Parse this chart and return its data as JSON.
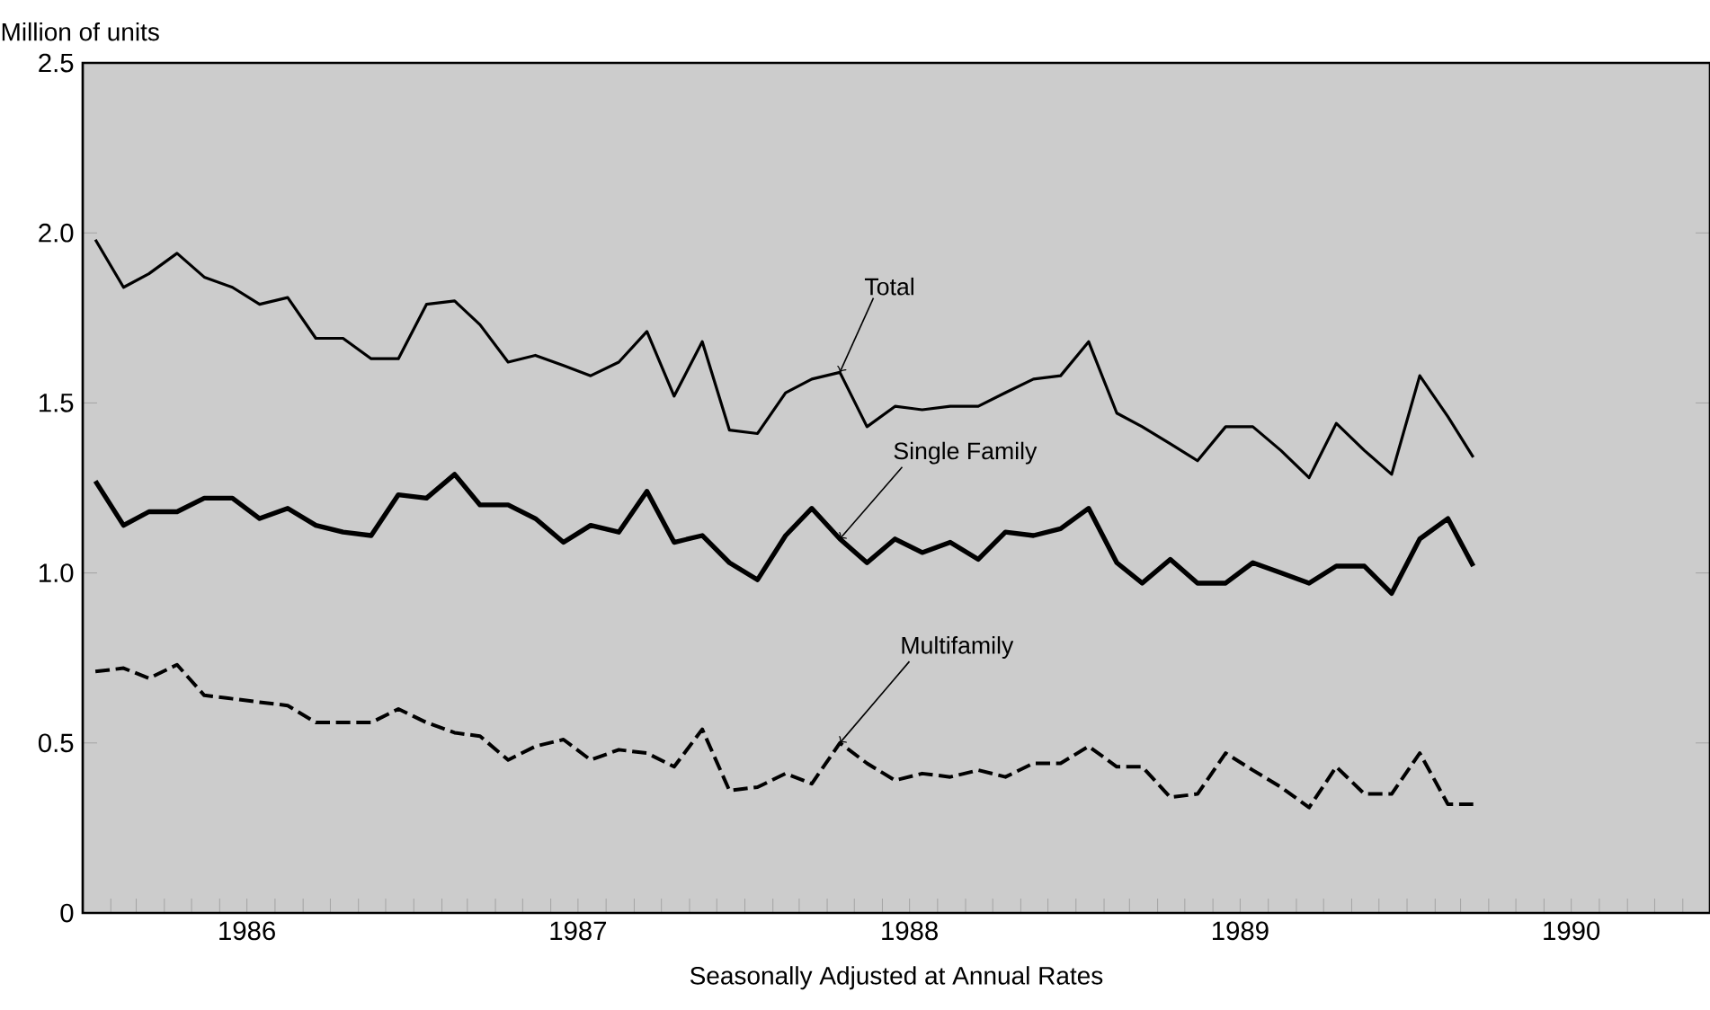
{
  "chart_data": {
    "type": "line",
    "xlabel": "Seasonally Adjusted at Annual Rates",
    "ylabel": "Million of units",
    "x": [
      "1986-01-15",
      "1986-02-15",
      "1986-03-15",
      "1986-04-15",
      "1986-05-15",
      "1986-06-15",
      "1986-07-15",
      "1986-08-15",
      "1986-09-15",
      "1986-10-15",
      "1986-11-15",
      "1986-12-15",
      "1987-01-15",
      "1987-02-15",
      "1987-03-15",
      "1987-04-15",
      "1987-05-15",
      "1987-06-15",
      "1987-07-15",
      "1987-08-15",
      "1987-09-15",
      "1987-10-15",
      "1987-11-15",
      "1987-12-15",
      "1988-01-15",
      "1988-02-15",
      "1988-03-15",
      "1988-04-15",
      "1988-05-15",
      "1988-06-15",
      "1988-07-15",
      "1988-08-15",
      "1988-09-15",
      "1988-10-15",
      "1988-11-15",
      "1988-12-15",
      "1989-01-15",
      "1989-02-15",
      "1989-03-15",
      "1989-04-15",
      "1989-05-15",
      "1989-06-15",
      "1989-07-15",
      "1989-08-15",
      "1989-09-15",
      "1989-10-15",
      "1989-11-15",
      "1989-12-15",
      "1990-01-15",
      "1990-02-15",
      "1990-03-15"
    ],
    "series": [
      {
        "name": "Total",
        "color": "#000000",
        "line_style": "solid",
        "values": [
          1.98,
          1.84,
          1.88,
          1.94,
          1.87,
          1.84,
          1.79,
          1.81,
          1.69,
          1.69,
          1.63,
          1.63,
          1.79,
          1.8,
          1.73,
          1.62,
          1.64,
          1.61,
          1.58,
          1.62,
          1.71,
          1.52,
          1.68,
          1.42,
          1.41,
          1.53,
          1.57,
          1.59,
          1.43,
          1.49,
          1.48,
          1.49,
          1.49,
          1.53,
          1.57,
          1.58,
          1.68,
          1.47,
          1.43,
          1.38,
          1.33,
          1.43,
          1.43,
          1.36,
          1.28,
          1.44,
          1.36,
          1.29,
          1.58,
          1.46,
          1.34
        ]
      },
      {
        "name": "Single Family",
        "color": "#000000",
        "line_style": "solid",
        "values": [
          1.27,
          1.14,
          1.18,
          1.18,
          1.22,
          1.22,
          1.16,
          1.19,
          1.14,
          1.12,
          1.11,
          1.23,
          1.22,
          1.29,
          1.2,
          1.2,
          1.16,
          1.09,
          1.14,
          1.12,
          1.24,
          1.09,
          1.11,
          1.03,
          0.98,
          1.11,
          1.19,
          1.1,
          1.03,
          1.1,
          1.06,
          1.09,
          1.04,
          1.12,
          1.11,
          1.13,
          1.19,
          1.03,
          0.97,
          1.04,
          0.97,
          0.97,
          1.03,
          1.0,
          0.97,
          1.02,
          1.02,
          0.94,
          1.1,
          1.16,
          1.02
        ]
      },
      {
        "name": "Multifamily",
        "color": "#000000",
        "line_style": "dashed",
        "values": [
          0.71,
          0.72,
          0.69,
          0.73,
          0.64,
          0.63,
          0.62,
          0.61,
          0.56,
          0.56,
          0.56,
          0.6,
          0.56,
          0.53,
          0.52,
          0.45,
          0.49,
          0.51,
          0.45,
          0.48,
          0.47,
          0.43,
          0.54,
          0.36,
          0.37,
          0.41,
          0.38,
          0.5,
          0.44,
          0.39,
          0.41,
          0.4,
          0.42,
          0.4,
          0.44,
          0.44,
          0.49,
          0.43,
          0.43,
          0.34,
          0.35,
          0.47,
          0.42,
          0.37,
          0.31,
          0.43,
          0.35,
          0.35,
          0.47,
          0.32,
          0.32
        ]
      }
    ],
    "xlim": [
      "1986-01-01",
      "1990-12-01"
    ],
    "xticks": [
      {
        "value": "1986-01-01",
        "label": null
      },
      {
        "value": "1986-02-01",
        "label": null
      },
      {
        "value": "1986-03-01",
        "label": null
      },
      {
        "value": "1986-04-01",
        "label": null
      },
      {
        "value": "1986-05-01",
        "label": null
      },
      {
        "value": "1986-06-01",
        "label": null
      },
      {
        "value": "1986-07-01",
        "label": "1986"
      },
      {
        "value": "1986-08-01",
        "label": null
      },
      {
        "value": "1986-09-01",
        "label": null
      },
      {
        "value": "1986-10-01",
        "label": null
      },
      {
        "value": "1986-11-01",
        "label": null
      },
      {
        "value": "1986-12-01",
        "label": null
      },
      {
        "value": "1987-01-01",
        "label": null
      },
      {
        "value": "1987-02-01",
        "label": null
      },
      {
        "value": "1987-03-01",
        "label": null
      },
      {
        "value": "1987-04-01",
        "label": null
      },
      {
        "value": "1987-05-01",
        "label": null
      },
      {
        "value": "1987-06-01",
        "label": null
      },
      {
        "value": "1987-07-01",
        "label": "1987"
      },
      {
        "value": "1987-08-01",
        "label": null
      },
      {
        "value": "1987-09-01",
        "label": null
      },
      {
        "value": "1987-10-01",
        "label": null
      },
      {
        "value": "1987-11-01",
        "label": null
      },
      {
        "value": "1987-12-01",
        "label": null
      },
      {
        "value": "1988-01-01",
        "label": null
      },
      {
        "value": "1988-02-01",
        "label": null
      },
      {
        "value": "1988-03-01",
        "label": null
      },
      {
        "value": "1988-04-01",
        "label": null
      },
      {
        "value": "1988-05-01",
        "label": null
      },
      {
        "value": "1988-06-01",
        "label": null
      },
      {
        "value": "1988-07-01",
        "label": "1988"
      },
      {
        "value": "1988-08-01",
        "label": null
      },
      {
        "value": "1988-09-01",
        "label": null
      },
      {
        "value": "1988-10-01",
        "label": null
      },
      {
        "value": "1988-11-01",
        "label": null
      },
      {
        "value": "1988-12-01",
        "label": null
      },
      {
        "value": "1989-01-01",
        "label": null
      },
      {
        "value": "1989-02-01",
        "label": null
      },
      {
        "value": "1989-03-01",
        "label": null
      },
      {
        "value": "1989-04-01",
        "label": null
      },
      {
        "value": "1989-05-01",
        "label": null
      },
      {
        "value": "1989-06-01",
        "label": null
      },
      {
        "value": "1989-07-01",
        "label": "1989"
      },
      {
        "value": "1989-08-01",
        "label": null
      },
      {
        "value": "1989-09-01",
        "label": null
      },
      {
        "value": "1989-10-01",
        "label": null
      },
      {
        "value": "1989-11-01",
        "label": null
      },
      {
        "value": "1989-12-01",
        "label": null
      },
      {
        "value": "1990-01-01",
        "label": null
      },
      {
        "value": "1990-02-01",
        "label": null
      },
      {
        "value": "1990-03-01",
        "label": null
      },
      {
        "value": "1990-04-01",
        "label": null
      },
      {
        "value": "1990-05-01",
        "label": null
      },
      {
        "value": "1990-06-01",
        "label": null
      },
      {
        "value": "1990-07-01",
        "label": "1990"
      },
      {
        "value": "1990-08-01",
        "label": null
      },
      {
        "value": "1990-09-01",
        "label": null
      },
      {
        "value": "1990-10-01",
        "label": null
      },
      {
        "value": "1990-11-01",
        "label": null
      }
    ],
    "ylim": [
      0,
      2.5
    ],
    "yticks": [
      0,
      0.5,
      {
        "value": 1,
        "label": "1.0"
      },
      1.5,
      {
        "value": 2,
        "label": "2.0"
      },
      2.5
    ]
  }
}
